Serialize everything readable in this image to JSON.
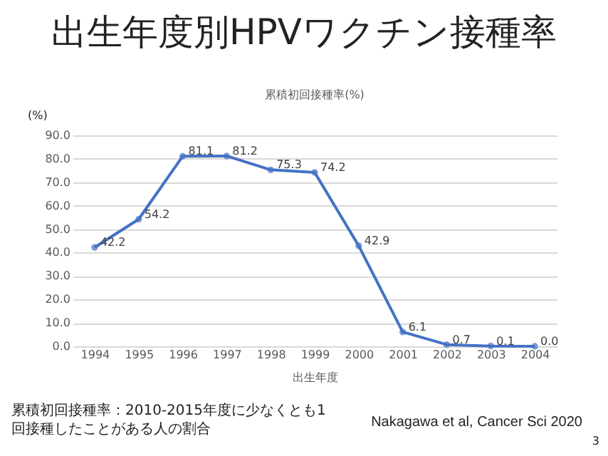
{
  "chart_data": {
    "type": "line",
    "title": "出生年度別HPVワクチン接種率",
    "subtitle": "累積初回接種率(%)",
    "xlabel": "出生年度",
    "ylabel": "(%)",
    "categories": [
      "1994",
      "1995",
      "1996",
      "1997",
      "1998",
      "1999",
      "2000",
      "2001",
      "2002",
      "2003",
      "2004"
    ],
    "series": [
      {
        "color": "#4472c4",
        "values": [
          42.2,
          54.2,
          81.1,
          81.2,
          75.3,
          74.2,
          42.9,
          6.1,
          0.7,
          0.1,
          0.0
        ]
      }
    ],
    "ylim": [
      0,
      90
    ],
    "yticks": [
      {
        "value": 0,
        "label": "0.0"
      },
      {
        "value": 10,
        "label": "10.0"
      },
      {
        "value": 20,
        "label": "20.0"
      },
      {
        "value": 30,
        "label": "30.0"
      },
      {
        "value": 40,
        "label": "40.0"
      },
      {
        "value": 50,
        "label": "50.0"
      },
      {
        "value": 60,
        "label": "60.0"
      },
      {
        "value": 70,
        "label": "70.0"
      },
      {
        "value": 80,
        "label": "80.0"
      },
      {
        "value": 90,
        "label": "90.0"
      }
    ],
    "value_labels": [
      "42.2",
      "54.2",
      "81.1",
      "81.2",
      "75.3",
      "74.2",
      "42.9",
      "6.1",
      "0.7",
      "0.1",
      "0.0"
    ],
    "grid": "y",
    "marker": "circle",
    "line_style": "solid",
    "annotations": [
      "累積初回接種率：2010-2015年度に少なくとも1回接種したことがある人の割合",
      "Nakagawa et al, Cancer Sci 2020",
      "3"
    ]
  }
}
